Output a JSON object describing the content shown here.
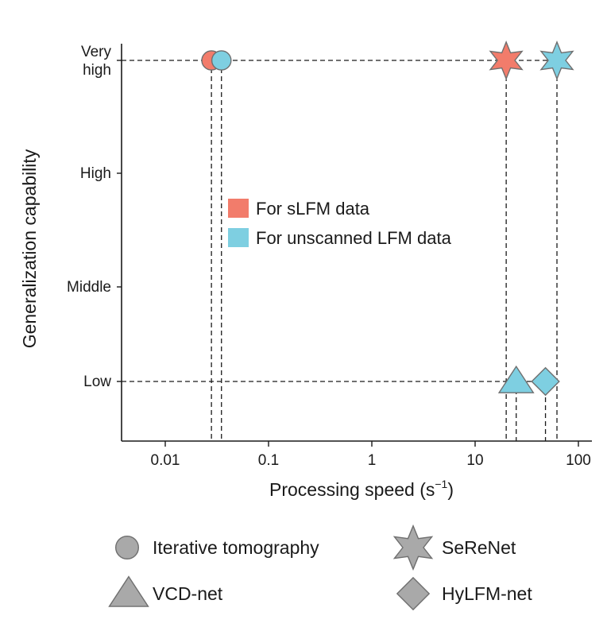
{
  "chart_data": {
    "type": "scatter",
    "xscale": "log",
    "xlabel_main": "Processing speed (s",
    "xlabel_sup": "−1",
    "xlabel_end": ")",
    "ylabel": "Generalization capability",
    "xlim": [
      0.004,
      130
    ],
    "x_ticks": [
      0.01,
      0.1,
      1,
      10,
      100
    ],
    "x_tick_labels": [
      "0.01",
      "0.1",
      "1",
      "10",
      "100"
    ],
    "y_categories": [
      "Low",
      "Middle",
      "High",
      "Very high"
    ],
    "y_tick_labels": [
      [
        "Low"
      ],
      [
        "Middle"
      ],
      [
        "High"
      ],
      [
        "Very",
        "high"
      ]
    ],
    "series": [
      {
        "name": "For sLFM data",
        "color": "#F27C6B",
        "points": [
          {
            "method": "Iterative tomography",
            "shape": "circle",
            "x": 0.028,
            "y": "Very high"
          },
          {
            "method": "SeReNet",
            "shape": "star",
            "x": 20,
            "y": "Very high"
          }
        ]
      },
      {
        "name": "For unscanned LFM data",
        "color": "#7ECFE1",
        "points": [
          {
            "method": "Iterative tomography",
            "shape": "circle",
            "x": 0.035,
            "y": "Very high"
          },
          {
            "method": "SeReNet",
            "shape": "star",
            "x": 62,
            "y": "Very high"
          },
          {
            "method": "VCD-net",
            "shape": "triangle",
            "x": 25,
            "y": "Low"
          },
          {
            "method": "HyLFM-net",
            "shape": "diamond",
            "x": 48,
            "y": "Low"
          }
        ]
      }
    ],
    "shape_key": [
      {
        "label": "Iterative tomography",
        "shape": "circle"
      },
      {
        "label": "SeReNet",
        "shape": "star"
      },
      {
        "label": "VCD-net",
        "shape": "triangle"
      },
      {
        "label": "HyLFM-net",
        "shape": "diamond"
      }
    ],
    "key_color": "#A9A9A9",
    "legend_position": "center"
  }
}
